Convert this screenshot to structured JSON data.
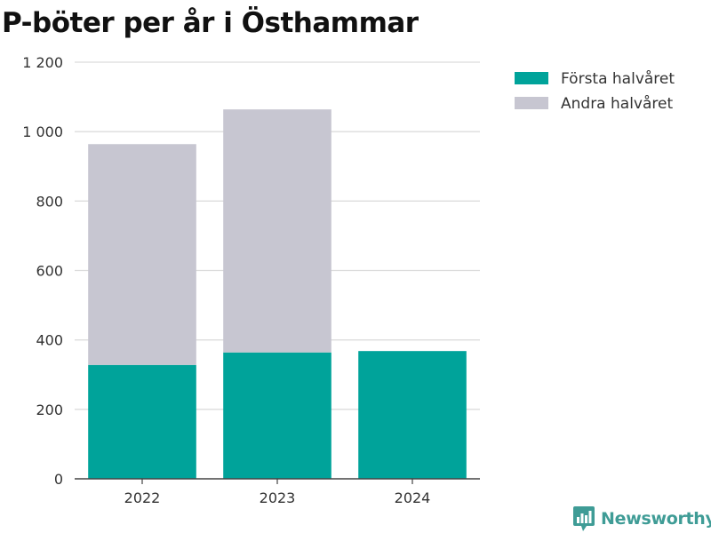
{
  "chart_data": {
    "type": "bar",
    "stacked": true,
    "title": "P-böter per år i Östhammar",
    "xlabel": "",
    "ylabel": "",
    "categories": [
      "2022",
      "2023",
      "2024"
    ],
    "series": [
      {
        "name": "Första halvåret",
        "color": "#00a39a",
        "values": [
          328,
          364,
          368
        ]
      },
      {
        "name": "Andra halvåret",
        "color": "#c7c6d1",
        "values": [
          636,
          700,
          0
        ]
      }
    ],
    "ylim": [
      0,
      1200
    ],
    "yticks": [
      0,
      200,
      400,
      600,
      800,
      1000,
      1200
    ],
    "ytick_labels": [
      "0",
      "200",
      "400",
      "600",
      "800",
      "1 000",
      "1 200"
    ],
    "grid": true,
    "legend_position": "top-right"
  },
  "brand": {
    "name": "Newsworthy",
    "icon": "bar-chart-speech-bubble-icon",
    "color": "#3f9c96"
  }
}
